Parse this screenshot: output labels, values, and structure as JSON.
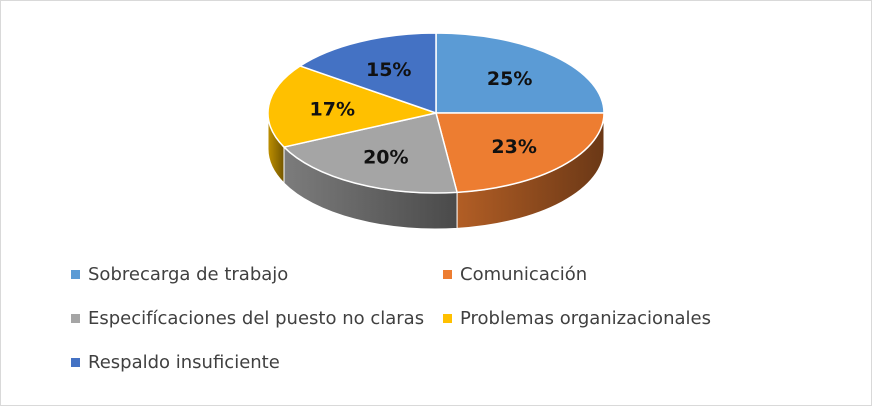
{
  "chart_data": {
    "type": "pie",
    "style": "3d",
    "title": "",
    "categories": [
      "Sobrecarga de trabajo",
      "Comunicación",
      "Especifícaciones del puesto no claras",
      "Problemas organizacionales",
      "Respaldo insuficiente"
    ],
    "values": [
      25,
      23,
      20,
      17,
      15
    ],
    "labels": [
      "25%",
      "23%",
      "20%",
      "17%",
      "15%"
    ],
    "colors": [
      "#5B9BD5",
      "#ED7D31",
      "#A5A5A5",
      "#FFC000",
      "#4472C4"
    ],
    "legend_position": "bottom"
  }
}
